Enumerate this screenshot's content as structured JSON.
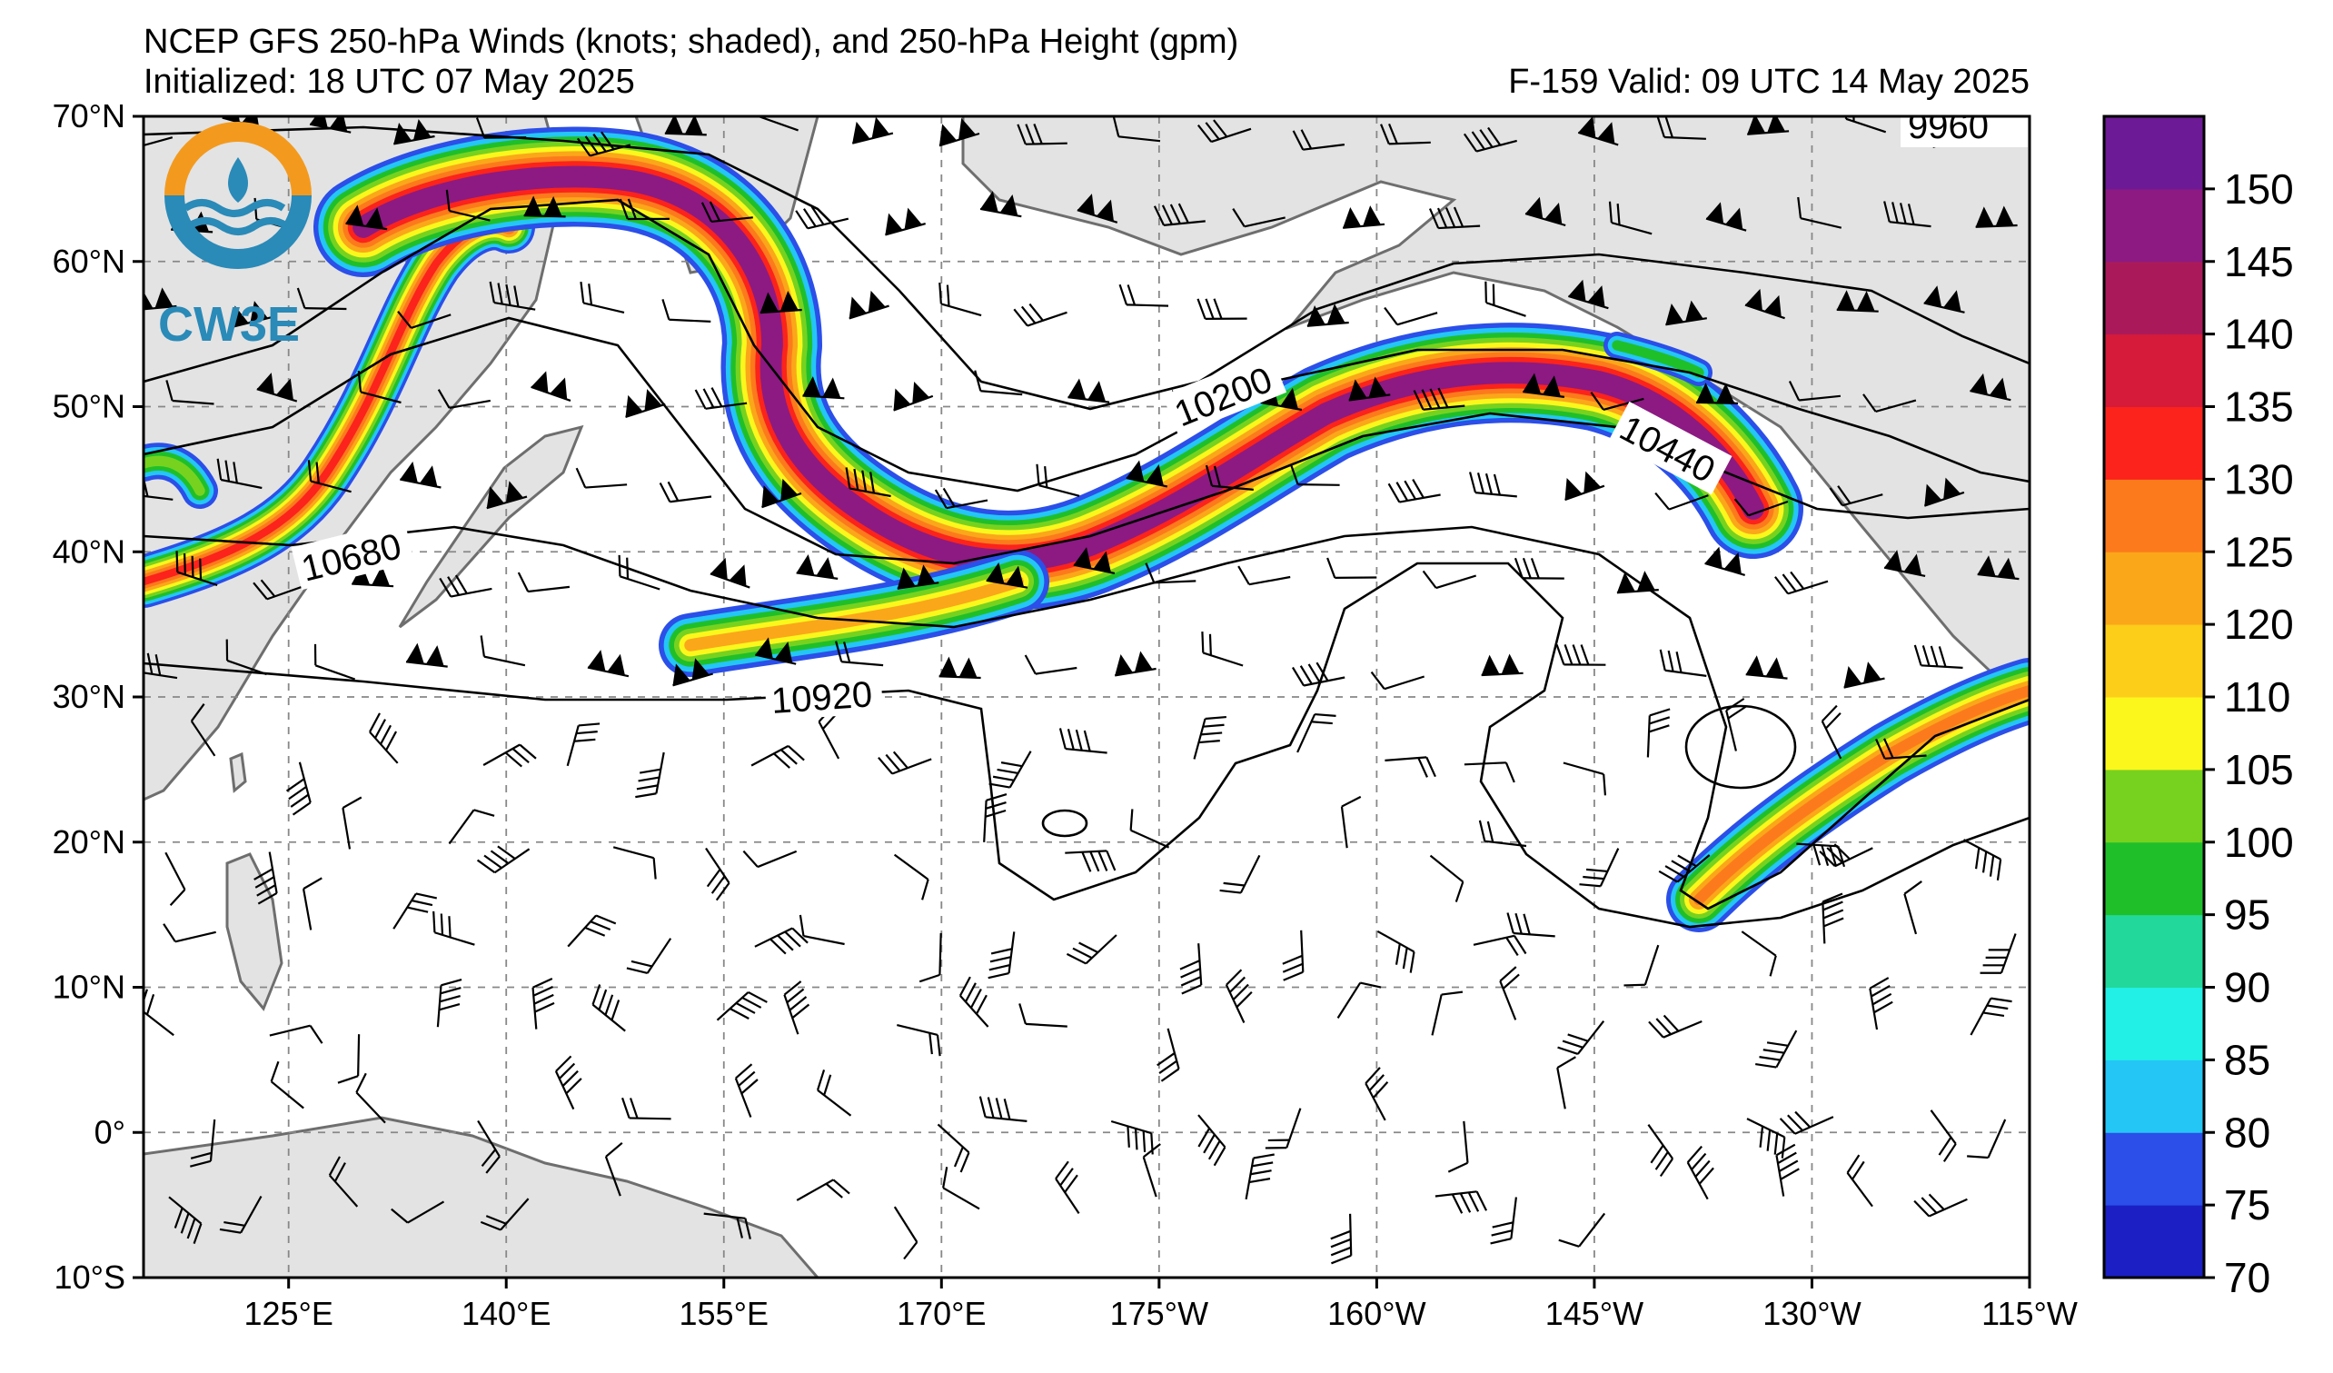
{
  "title": {
    "line1": "NCEP GFS 250-hPa Winds (knots; shaded), and 250-hPa Height (gpm)",
    "line2": "Initialized: 18 UTC 07 May 2025",
    "valid": "F-159  Valid: 09 UTC 14 May 2025"
  },
  "logo": {
    "text": "CW3E",
    "ring_colors": [
      "#f39a1e",
      "#2a8ab8"
    ]
  },
  "map": {
    "lat_labels": [
      "70°N",
      "60°N",
      "50°N",
      "40°N",
      "30°N",
      "20°N",
      "10°N",
      "0°",
      "10°S"
    ],
    "lon_labels": [
      "125°E",
      "140°E",
      "155°E",
      "170°E",
      "175°W",
      "160°W",
      "145°W",
      "130°W",
      "115°W"
    ],
    "lat_range": [
      -10,
      70
    ],
    "lon_range_east": [
      115,
      245
    ],
    "grid": "dashed",
    "land_color": "#e3e3e3",
    "coast_color": "#6e6e6e"
  },
  "height_contours": {
    "units": "gpm",
    "labels": [
      "9960",
      "10200",
      "10440",
      "10680",
      "10920"
    ]
  },
  "colorbar": {
    "levels": [
      70,
      75,
      80,
      85,
      90,
      95,
      100,
      105,
      110,
      120,
      125,
      130,
      135,
      140,
      145,
      150
    ],
    "tick_labels": [
      "70",
      "75",
      "80",
      "85",
      "90",
      "95",
      "100",
      "105",
      "110",
      "120",
      "125",
      "130",
      "135",
      "140",
      "145",
      "150"
    ],
    "colors": [
      "#1b1fc4",
      "#2b4fe8",
      "#24c6f5",
      "#22f0e6",
      "#22d89a",
      "#1fbf2a",
      "#77d21f",
      "#fbf71c",
      "#fcce1a",
      "#fba71a",
      "#fc7a1c",
      "#fb231c",
      "#d61a3a",
      "#aa1a5a",
      "#8c1a82",
      "#6c1a95"
    ]
  },
  "jet": {
    "ramp_colors": [
      "#2b4fe8",
      "#24c6f5",
      "#1fbf2a",
      "#77d21f",
      "#fbf71c",
      "#fba71a",
      "#fc7a1c",
      "#fb231c",
      "#8c1a82"
    ]
  }
}
